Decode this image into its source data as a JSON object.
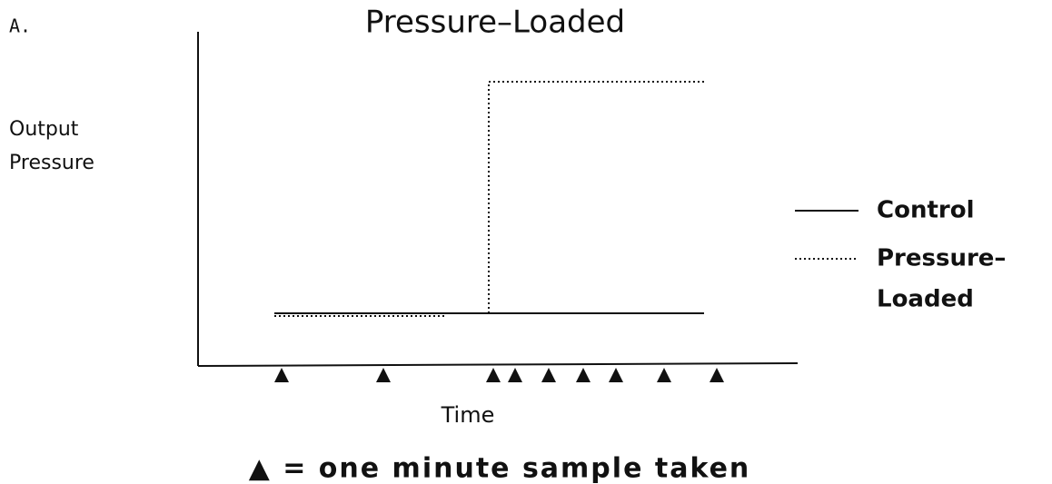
{
  "panel_label": "A.",
  "title": "Pressure–Loaded",
  "y_axis_label": [
    "Output",
    "Pressure"
  ],
  "x_axis_label": "Time",
  "legend": [
    {
      "label": [
        "Control"
      ]
    },
    {
      "label": [
        "Pressure–",
        "Loaded"
      ]
    }
  ],
  "caption": "▲ = one minute sample taken"
}
